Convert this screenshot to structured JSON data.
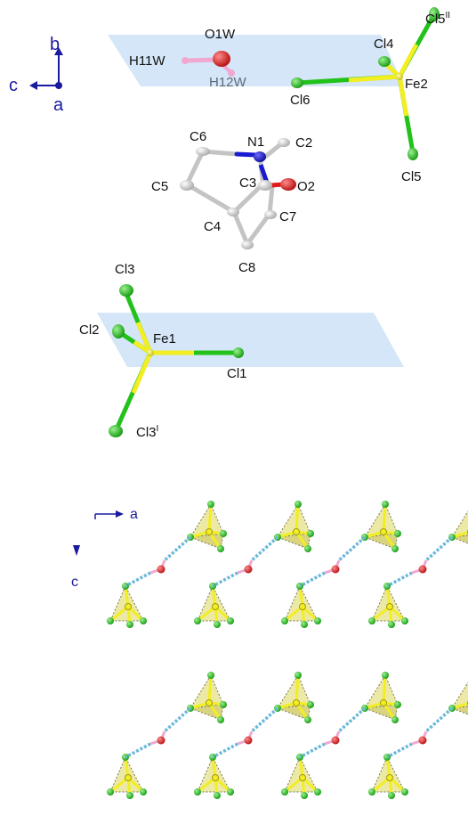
{
  "top_panel": {
    "axes": {
      "b": "b",
      "c": "c",
      "a": "a"
    },
    "atom_labels": {
      "O1W": "O1W",
      "H11W": "H11W",
      "H12W": "H12W",
      "Cl5II": "Cl5",
      "Cl5II_sup": "II",
      "Cl4": "Cl4",
      "Fe2": "Fe2",
      "Cl6": "Cl6",
      "Cl5": "Cl5",
      "C6": "C6",
      "N1": "N1",
      "C2": "C2",
      "C5": "C5",
      "C3": "C3",
      "O2": "O2",
      "C4": "C4",
      "C7": "C7",
      "C8": "C8",
      "Cl3": "Cl3",
      "Cl2": "Cl2",
      "Fe1": "Fe1",
      "Cl1": "Cl1",
      "Cl3I": "Cl3",
      "Cl3I_sup": "I"
    }
  },
  "bottom_panel": {
    "axes": {
      "a": "a",
      "c": "c"
    }
  },
  "colors": {
    "plane": "#cfe3f7",
    "chlorine": "#22c21a",
    "iron": "#f2ee22",
    "oxygen": "#e21a1a",
    "hydrogen": "#f0a8d0",
    "nitrogen": "#1a1ad0",
    "carbon": "#d8d8d8",
    "hbond": "#6ab8d8",
    "axis": "#1a1aa0",
    "tetrahedron": "#ece9a6"
  }
}
